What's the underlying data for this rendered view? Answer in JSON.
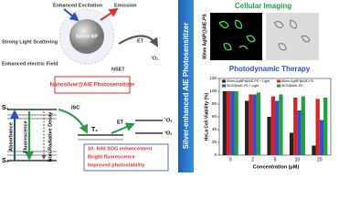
{
  "diagram": {
    "excitation": "Enhanced Excitation",
    "emission": "Emission",
    "scattering": "Strong Light Scattering",
    "field": "Enhanced electric Field",
    "np": "Silver NP",
    "et": "ET",
    "nset": "NSET",
    "singlet": "¹O₂",
    "box": "Nanosilver@AIE Photosensitizer",
    "s1": "S₁",
    "s0": "S₀",
    "absorbance": "Absorbance",
    "fluorescence": "Fluorescence",
    "decay": "Non-Radiative Decay",
    "isc": "ISC",
    "t1": "T₁",
    "et2": "ET",
    "triplet": "³O₂",
    "singlet2": "¹O₂",
    "bullets": [
      "10- fold SOG enhancement",
      "Bright fluorescence",
      "Improved photostability"
    ]
  },
  "banner": "Silver-enhanced AIE Photosensitizer",
  "imaging": {
    "title": "Cellular Imaging",
    "sample": "80nm AgNP@AIE-PS"
  },
  "chart_data": {
    "type": "bar",
    "title": "Photodynamic Therapy",
    "xlabel": "Concentration (μM)",
    "ylabel": "HeLa Cell Viability (%)",
    "categories": [
      "0",
      "2",
      "5",
      "10",
      "20"
    ],
    "series": [
      {
        "name": "80nm-AgNP@AIE-PS + Light",
        "color": "#222222",
        "values": [
          100,
          85,
          60,
          35,
          15
        ]
      },
      {
        "name": "80nm-AgNP@AIE-PS",
        "color": "#e02020",
        "values": [
          100,
          95,
          92,
          90,
          88
        ]
      },
      {
        "name": "SiO2@AIE-PS + Light",
        "color": "#3050d0",
        "values": [
          100,
          95,
          85,
          70,
          55
        ]
      },
      {
        "name": "SiO2@AIE-PS",
        "color": "#20a040",
        "values": [
          100,
          98,
          95,
          92,
          90
        ]
      }
    ],
    "ylim": [
      0,
      120
    ],
    "yticks": [
      0,
      20,
      40,
      60,
      80,
      100,
      120
    ]
  }
}
